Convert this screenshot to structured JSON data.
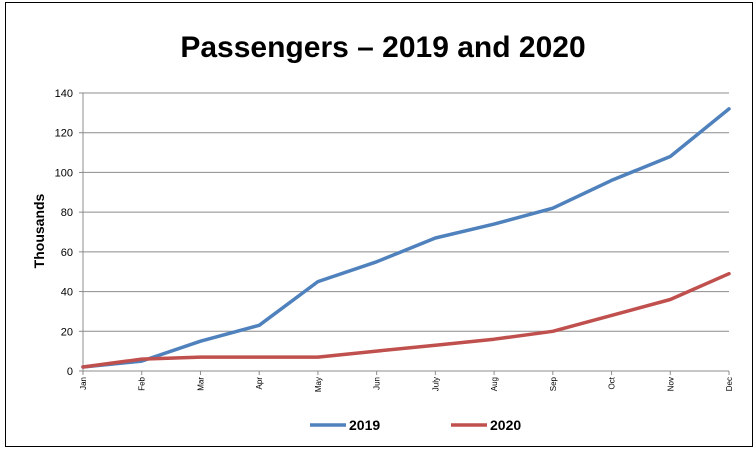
{
  "chart_data": {
    "type": "line",
    "title": "Passengers – 2019 and 2020",
    "xlabel": "",
    "ylabel": "Thousands",
    "ylim": [
      0,
      140
    ],
    "yticks": [
      0,
      20,
      40,
      60,
      80,
      100,
      120,
      140
    ],
    "grid": true,
    "legend_position": "bottom",
    "categories": [
      "Jan",
      "Feb",
      "Mar",
      "Apr",
      "May",
      "Jun",
      "July",
      "Aug",
      "Sep",
      "Oct",
      "Nov",
      "Dec"
    ],
    "series": [
      {
        "name": "2019",
        "color": "#4f81bd",
        "values": [
          2,
          5,
          15,
          23,
          45,
          55,
          67,
          74,
          82,
          96,
          108,
          132
        ]
      },
      {
        "name": "2020",
        "color": "#c0504d",
        "values": [
          2,
          6,
          7,
          7,
          7,
          10,
          13,
          16,
          20,
          28,
          36,
          49
        ]
      }
    ]
  }
}
